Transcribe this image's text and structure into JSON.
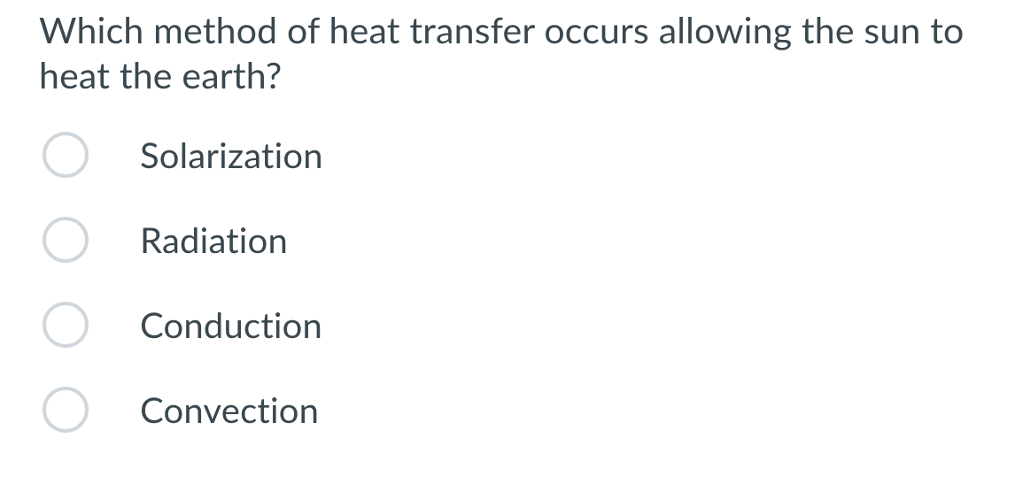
{
  "question": {
    "text": "Which method of heat transfer occurs allowing the sun to heat the earth?",
    "text_color": "#3a474e",
    "font_size_pt": 31
  },
  "options": [
    {
      "label": "Solarization"
    },
    {
      "label": "Radiation"
    },
    {
      "label": "Conduction"
    },
    {
      "label": "Convection"
    }
  ],
  "style": {
    "radio_border_color": "#cfd6dc",
    "background_color": "#ffffff",
    "option_font_size_pt": 30,
    "option_text_color": "#3a474e"
  }
}
